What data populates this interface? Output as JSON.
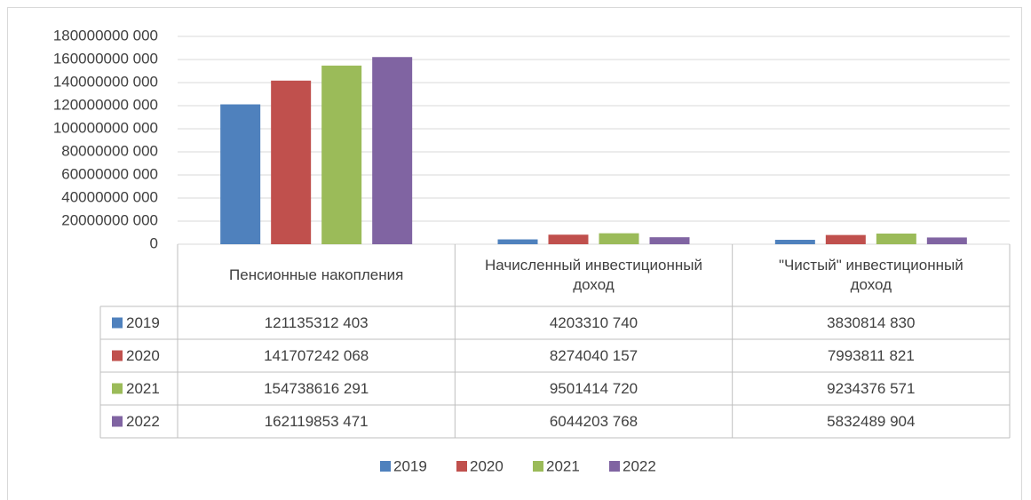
{
  "chart_data": {
    "type": "bar",
    "categories": [
      "Пенсионные накопления",
      "Начисленный инвестиционный доход",
      "\"Чистый\" инвестиционный доход"
    ],
    "series": [
      {
        "name": "2019",
        "color": "#4f81bd",
        "values": [
          121135312403,
          4203310740,
          3830814830
        ],
        "value_labels": [
          "121135312 403",
          "4203310 740",
          "3830814 830"
        ]
      },
      {
        "name": "2020",
        "color": "#c0504d",
        "values": [
          141707242068,
          8274040157,
          7993811821
        ],
        "value_labels": [
          "141707242 068",
          "8274040 157",
          "7993811 821"
        ]
      },
      {
        "name": "2021",
        "color": "#9bbb59",
        "values": [
          154738616291,
          9501414720,
          9234376571
        ],
        "value_labels": [
          "154738616 291",
          "9501414 720",
          "9234376 571"
        ]
      },
      {
        "name": "2022",
        "color": "#8064a2",
        "values": [
          162119853471,
          6044203768,
          5832489904
        ],
        "value_labels": [
          "162119853 471",
          "6044203 768",
          "5832489 904"
        ]
      }
    ],
    "ylim": [
      0,
      180000000000
    ],
    "yticks": [
      0,
      {
        "value": 20000000000,
        "label": "20000000 000"
      },
      {
        "value": 40000000000,
        "label": "40000000 000"
      },
      {
        "value": 60000000000,
        "label": "60000000 000"
      },
      {
        "value": 80000000000,
        "label": "80000000 000"
      },
      {
        "value": 100000000000,
        "label": "100000000 000"
      },
      {
        "value": 120000000000,
        "label": "120000000 000"
      },
      {
        "value": 140000000000,
        "label": "140000000 000"
      },
      {
        "value": 160000000000,
        "label": "160000000 000"
      },
      {
        "value": 180000000000,
        "label": "180000000 000"
      }
    ],
    "grid": true,
    "legend": "bottom",
    "data_table": true
  }
}
